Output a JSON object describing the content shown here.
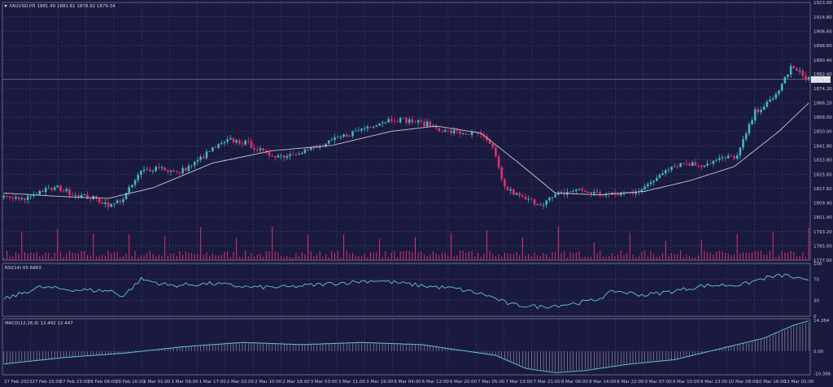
{
  "header": {
    "symbol": "XAUUSD,H5",
    "ohlc": "1881.49 1881.81 1878.92 1879.34",
    "rsi_label": "RSI(14) 65.6863",
    "macd_label": "MACD(12,26,9) 12.492 12.447"
  },
  "colors": {
    "background": "#1a1a3e",
    "grid": "#4a4a7a",
    "bull": "#3fb8c0",
    "bear": "#e0306a",
    "ma": "#c8c8d0",
    "rsi": "#5ec8d8",
    "macd": "#5ec8d8",
    "volume": "#e0306a",
    "axis_text": "#c8c8d8"
  },
  "chart_data": [
    {
      "type": "candlestick",
      "name": "price",
      "ylim": [
        1777,
        1923
      ],
      "y_ticks": [
        "1923.00",
        "1914.80",
        "1906.60",
        "1898.60",
        "1890.40",
        "1882.40",
        "1874.20",
        "1866.20",
        "1858.00",
        "1850.00",
        "1841.80",
        "1833.80",
        "1825.60",
        "1817.60",
        "1809.40",
        "1801.40",
        "1793.20",
        "1785.00",
        "1777.00"
      ],
      "current_price": "1879.34",
      "x_labels": [
        "27 Feb 2023",
        "27 Feb 15:00",
        "27 Feb 23:00",
        "28 Feb 08:00",
        "28 Feb 16:00",
        "1 Mar 01:00",
        "1 Mar 09:00",
        "1 Mar 17:00",
        "2 Mar 02:00",
        "2 Mar 10:00",
        "2 Mar 18:00",
        "3 Mar 03:00",
        "3 Mar 11:00",
        "3 Mar 19:00",
        "6 Mar 04:00",
        "6 Mar 12:00",
        "6 Mar 20:00",
        "7 Mar 05:00",
        "7 Mar 13:00",
        "7 Mar 21:00",
        "8 Mar 06:00",
        "8 Mar 14:00",
        "8 Mar 22:00",
        "9 Mar 07:00",
        "9 Mar 15:00",
        "9 Mar 23:00",
        "10 Mar 08:00",
        "10 Mar 16:00",
        "13 Mar 01:00"
      ],
      "anchors": [
        [
          0,
          1813
        ],
        [
          6,
          1811
        ],
        [
          12,
          1816
        ],
        [
          18,
          1818
        ],
        [
          24,
          1814
        ],
        [
          30,
          1812
        ],
        [
          36,
          1808
        ],
        [
          40,
          1812
        ],
        [
          46,
          1827
        ],
        [
          52,
          1830
        ],
        [
          58,
          1826
        ],
        [
          64,
          1832
        ],
        [
          70,
          1840
        ],
        [
          76,
          1845
        ],
        [
          82,
          1843
        ],
        [
          88,
          1837
        ],
        [
          94,
          1836
        ],
        [
          100,
          1839
        ],
        [
          106,
          1841
        ],
        [
          112,
          1846
        ],
        [
          118,
          1850
        ],
        [
          124,
          1854
        ],
        [
          130,
          1857
        ],
        [
          136,
          1856
        ],
        [
          142,
          1854
        ],
        [
          148,
          1850
        ],
        [
          154,
          1849
        ],
        [
          160,
          1848
        ],
        [
          164,
          1840
        ],
        [
          168,
          1818
        ],
        [
          174,
          1812
        ],
        [
          180,
          1809
        ],
        [
          186,
          1814
        ],
        [
          192,
          1817
        ],
        [
          198,
          1815
        ],
        [
          204,
          1814
        ],
        [
          210,
          1815
        ],
        [
          216,
          1819
        ],
        [
          222,
          1829
        ],
        [
          228,
          1832
        ],
        [
          234,
          1831
        ],
        [
          240,
          1834
        ],
        [
          246,
          1836
        ],
        [
          252,
          1861
        ],
        [
          258,
          1868
        ],
        [
          264,
          1886
        ],
        [
          270,
          1880
        ]
      ],
      "moving_average": [
        [
          0,
          1815
        ],
        [
          20,
          1813
        ],
        [
          35,
          1812
        ],
        [
          50,
          1818
        ],
        [
          70,
          1832
        ],
        [
          90,
          1839
        ],
        [
          110,
          1842
        ],
        [
          130,
          1850
        ],
        [
          145,
          1853
        ],
        [
          160,
          1849
        ],
        [
          172,
          1833
        ],
        [
          185,
          1815
        ],
        [
          200,
          1814
        ],
        [
          215,
          1816
        ],
        [
          230,
          1822
        ],
        [
          245,
          1830
        ],
        [
          260,
          1850
        ],
        [
          270,
          1866
        ]
      ]
    },
    {
      "type": "bar",
      "name": "volume",
      "series": [
        {
          "values_note": "tick volume histogram, taller spikes at session opens"
        }
      ]
    },
    {
      "type": "line",
      "name": "RSI",
      "y_ticks": [
        "100",
        "70",
        "30",
        "0"
      ],
      "ylim": [
        0,
        100
      ],
      "anchors": [
        [
          0,
          32
        ],
        [
          12,
          55
        ],
        [
          24,
          50
        ],
        [
          36,
          48
        ],
        [
          40,
          38
        ],
        [
          46,
          70
        ],
        [
          56,
          58
        ],
        [
          70,
          62
        ],
        [
          82,
          55
        ],
        [
          95,
          55
        ],
        [
          110,
          62
        ],
        [
          125,
          68
        ],
        [
          140,
          58
        ],
        [
          152,
          52
        ],
        [
          162,
          40
        ],
        [
          170,
          22
        ],
        [
          180,
          18
        ],
        [
          188,
          22
        ],
        [
          198,
          30
        ],
        [
          205,
          48
        ],
        [
          215,
          40
        ],
        [
          225,
          48
        ],
        [
          235,
          58
        ],
        [
          248,
          60
        ],
        [
          255,
          72
        ],
        [
          262,
          78
        ],
        [
          270,
          65
        ]
      ]
    },
    {
      "type": "line",
      "name": "MACD",
      "y_ticks": [
        "14.264",
        "0.00",
        "-10.396"
      ],
      "ylim": [
        -11,
        15
      ],
      "anchors": [
        [
          0,
          -6
        ],
        [
          20,
          -3
        ],
        [
          40,
          -1
        ],
        [
          60,
          2
        ],
        [
          80,
          4
        ],
        [
          100,
          3
        ],
        [
          120,
          4
        ],
        [
          140,
          3
        ],
        [
          155,
          0
        ],
        [
          165,
          -2
        ],
        [
          175,
          -8
        ],
        [
          185,
          -10
        ],
        [
          195,
          -9
        ],
        [
          210,
          -6
        ],
        [
          225,
          -4
        ],
        [
          240,
          1
        ],
        [
          255,
          6
        ],
        [
          265,
          12
        ],
        [
          270,
          14
        ]
      ]
    }
  ]
}
